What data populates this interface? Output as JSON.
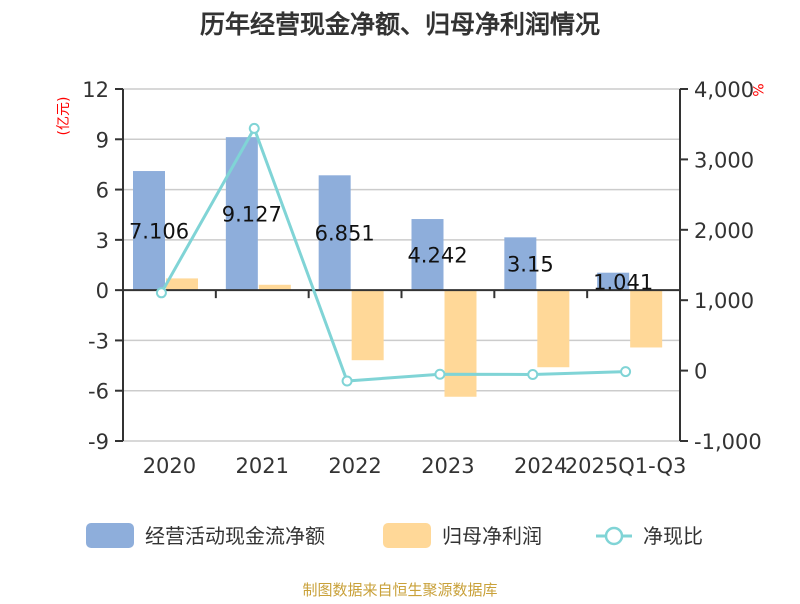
{
  "chart_data": {
    "type": "bar",
    "title": "历年经营现金净额、归母净利润情况",
    "ylabel": "(亿元)",
    "y2label": "%",
    "categories": [
      "2020",
      "2021",
      "2022",
      "2023",
      "2024",
      "2025Q1-Q3"
    ],
    "ylim": [
      -9,
      12
    ],
    "yticks": [
      12,
      9,
      6,
      3,
      0,
      -3,
      -6,
      -9
    ],
    "y2lim": [
      -1000,
      4000
    ],
    "y2ticks": [
      "4,000",
      "3,000",
      "2,000",
      "1,000",
      "0",
      "-1,000"
    ],
    "y2tick_values": [
      4000,
      3000,
      2000,
      1000,
      0,
      -1000
    ],
    "grid": true,
    "legend_position": "bottom",
    "series": [
      {
        "name": "经营活动现金流净额",
        "type": "bar",
        "axis": "left",
        "color": "#8eaedb",
        "values": [
          7.106,
          9.127,
          6.851,
          4.242,
          3.15,
          1.041
        ],
        "labels": [
          "7.106",
          "9.127",
          "6.851",
          "4.242",
          "3.15",
          "1.041"
        ]
      },
      {
        "name": "归母净利润",
        "type": "bar",
        "axis": "left",
        "color": "#ffd898",
        "values": [
          0.7,
          0.32,
          -4.18,
          -6.36,
          -4.6,
          -3.42
        ]
      },
      {
        "name": "净现比",
        "type": "line",
        "axis": "right",
        "color": "#80d4d6",
        "values": [
          1105,
          3440,
          -148,
          -52,
          -55,
          -14
        ]
      }
    ]
  },
  "footer": "制图数据来自恒生聚源数据库",
  "colors": {
    "title": "#333333",
    "axis_label": "#ff0000",
    "footer": "#c9a13a",
    "grid": "#cccccc",
    "axis": "#333333"
  }
}
